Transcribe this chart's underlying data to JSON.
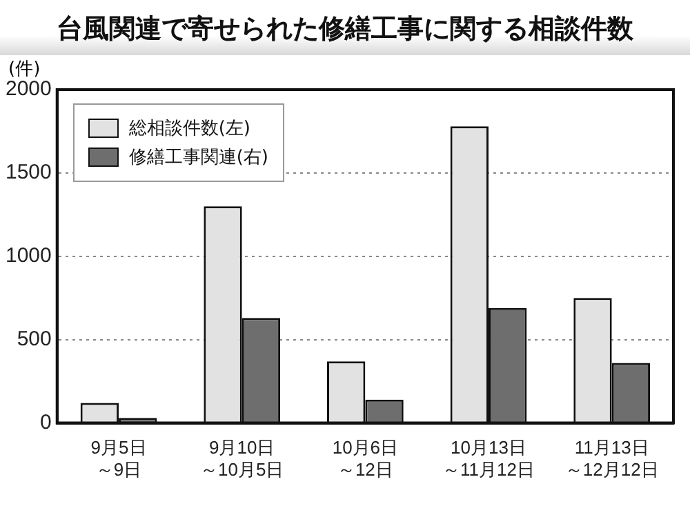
{
  "chart_data": {
    "type": "bar",
    "title": "台風関連で寄せられた修繕工事に関する相談件数",
    "ylabel": "(件)",
    "categories": [
      "9月5日～9日",
      "9月10日～10月5日",
      "10月6日～12日",
      "10月13日～11月12日",
      "11月13日～12月12日"
    ],
    "series": [
      {
        "name": "総相談件数(左)",
        "color": "#e2e2e2",
        "values": [
          120,
          1300,
          370,
          1780,
          750
        ]
      },
      {
        "name": "修繕工事関連(右)",
        "color": "#6e6e6e",
        "values": [
          30,
          630,
          140,
          690,
          360
        ]
      }
    ],
    "ylim": [
      0,
      2000
    ],
    "yticks": [
      0,
      500,
      1000,
      1500,
      2000
    ],
    "grid": "y",
    "legend": "top left",
    "line_style": "dotted"
  }
}
